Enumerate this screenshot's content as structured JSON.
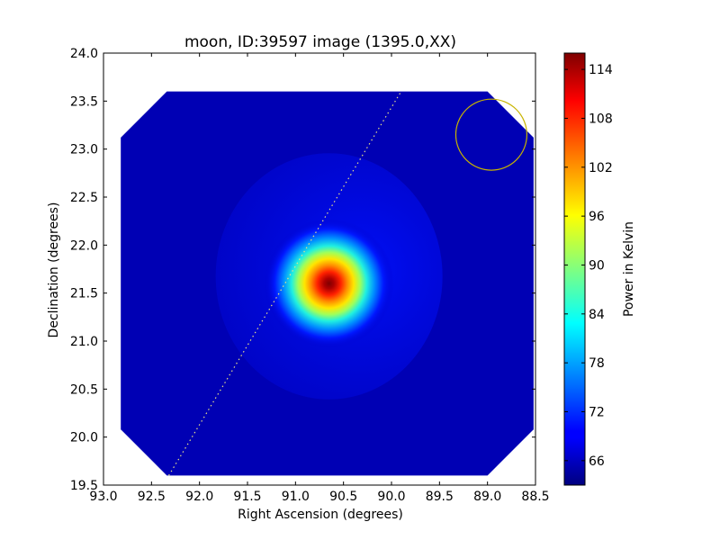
{
  "chart_data": {
    "type": "heatmap",
    "title": "moon, ID:39597 image (1395.0,XX)",
    "xlabel": "Right Ascension (degrees)",
    "ylabel": "Declination (degrees)",
    "xlim": [
      93.0,
      88.5
    ],
    "ylim": [
      19.5,
      24.0
    ],
    "x_ticks": [
      "93.0",
      "92.5",
      "92.0",
      "91.5",
      "91.0",
      "90.5",
      "90.0",
      "89.5",
      "89.0",
      "88.5"
    ],
    "y_ticks": [
      "19.5",
      "20.0",
      "20.5",
      "21.0",
      "21.5",
      "22.0",
      "22.5",
      "23.0",
      "23.5",
      "24.0"
    ],
    "colorbar": {
      "label": "Power in Kelvin",
      "colormap": "jet",
      "range": [
        63,
        116
      ],
      "ticks": [
        "66",
        "72",
        "78",
        "84",
        "90",
        "96",
        "102",
        "108",
        "114"
      ]
    },
    "data_region": {
      "ra_range": [
        92.82,
        88.52
      ],
      "dec_range": [
        19.6,
        23.6
      ],
      "corner_cut_deg": 0.48,
      "background_kelvin": 65
    },
    "source": {
      "ra": 90.65,
      "dec": 21.6,
      "peak_kelvin": 115,
      "width_deg": 0.5
    },
    "beam_circle": {
      "ra": 88.96,
      "dec": 23.15,
      "radius_deg": 0.37,
      "color": "#c8b400"
    },
    "track_line": {
      "start": {
        "ra": 92.32,
        "dec": 19.6
      },
      "end": {
        "ra": 89.9,
        "dec": 23.6
      },
      "color": "#e8e08a"
    }
  }
}
